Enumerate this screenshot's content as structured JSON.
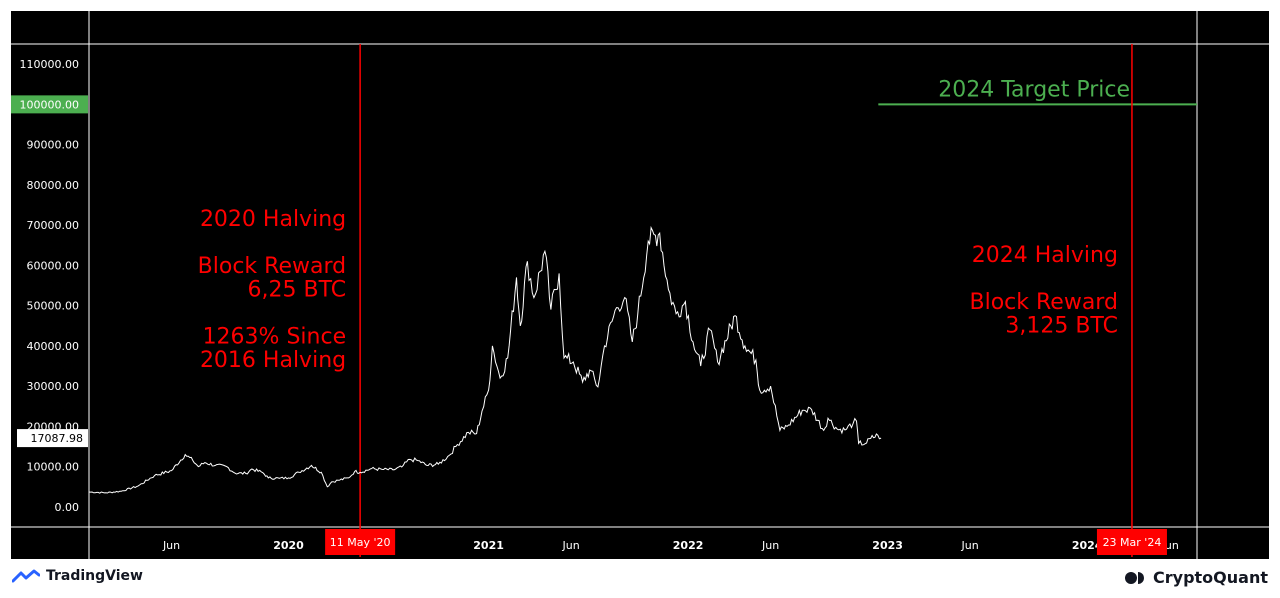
{
  "chart_data": {
    "type": "line",
    "series": [
      {
        "points": [
          [
            "2019-01-01",
            3700
          ],
          [
            "2019-02-01",
            3500
          ],
          [
            "2019-03-01",
            3900
          ],
          [
            "2019-04-01",
            5200
          ],
          [
            "2019-05-01",
            7800
          ],
          [
            "2019-06-01",
            9000
          ],
          [
            "2019-06-26",
            13000
          ],
          [
            "2019-07-10",
            11500
          ],
          [
            "2019-07-20",
            10000
          ],
          [
            "2019-08-01",
            11000
          ],
          [
            "2019-08-20",
            10300
          ],
          [
            "2019-09-10",
            10000
          ],
          [
            "2019-09-25",
            8400
          ],
          [
            "2019-10-15",
            8300
          ],
          [
            "2019-10-26",
            9400
          ],
          [
            "2019-11-15",
            8500
          ],
          [
            "2019-11-25",
            7200
          ],
          [
            "2019-12-15",
            7100
          ],
          [
            "2020-01-01",
            7200
          ],
          [
            "2020-01-20",
            8600
          ],
          [
            "2020-02-12",
            10300
          ],
          [
            "2020-03-01",
            8600
          ],
          [
            "2020-03-12",
            5000
          ],
          [
            "2020-03-20",
            6200
          ],
          [
            "2020-04-01",
            6600
          ],
          [
            "2020-04-20",
            7200
          ],
          [
            "2020-05-01",
            8800
          ],
          [
            "2020-05-11",
            8600
          ],
          [
            "2020-06-01",
            9500
          ],
          [
            "2020-06-20",
            9300
          ],
          [
            "2020-07-10",
            9200
          ],
          [
            "2020-07-26",
            9900
          ],
          [
            "2020-08-10",
            11800
          ],
          [
            "2020-08-25",
            11500
          ],
          [
            "2020-09-10",
            10300
          ],
          [
            "2020-10-01",
            10600
          ],
          [
            "2020-10-21",
            12800
          ],
          [
            "2020-11-05",
            15500
          ],
          [
            "2020-11-25",
            18500
          ],
          [
            "2020-12-10",
            18200
          ],
          [
            "2020-12-20",
            23800
          ],
          [
            "2021-01-01",
            29000
          ],
          [
            "2021-01-08",
            40000
          ],
          [
            "2021-01-22",
            32000
          ],
          [
            "2021-02-05",
            37000
          ],
          [
            "2021-02-21",
            57000
          ],
          [
            "2021-02-28",
            45000
          ],
          [
            "2021-03-13",
            61000
          ],
          [
            "2021-03-25",
            52000
          ],
          [
            "2021-04-14",
            63500
          ],
          [
            "2021-04-25",
            49000
          ],
          [
            "2021-05-10",
            58000
          ],
          [
            "2021-05-19",
            37000
          ],
          [
            "2021-06-05",
            36000
          ],
          [
            "2021-06-22",
            31000
          ],
          [
            "2021-07-05",
            34000
          ],
          [
            "2021-07-20",
            29800
          ],
          [
            "2021-08-01",
            40000
          ],
          [
            "2021-08-23",
            49500
          ],
          [
            "2021-09-07",
            52000
          ],
          [
            "2021-09-21",
            41000
          ],
          [
            "2021-10-01",
            48000
          ],
          [
            "2021-10-20",
            66000
          ],
          [
            "2021-11-10",
            68000
          ],
          [
            "2021-11-26",
            54000
          ],
          [
            "2021-12-10",
            48000
          ],
          [
            "2021-12-27",
            51000
          ],
          [
            "2022-01-10",
            41000
          ],
          [
            "2022-01-24",
            35000
          ],
          [
            "2022-02-10",
            44000
          ],
          [
            "2022-02-24",
            36000
          ],
          [
            "2022-03-28",
            47500
          ],
          [
            "2022-04-15",
            40000
          ],
          [
            "2022-05-05",
            36500
          ],
          [
            "2022-05-12",
            29000
          ],
          [
            "2022-06-01",
            30000
          ],
          [
            "2022-06-18",
            19000
          ],
          [
            "2022-07-01",
            20000
          ],
          [
            "2022-07-29",
            24000
          ],
          [
            "2022-08-15",
            24200
          ],
          [
            "2022-09-06",
            19000
          ],
          [
            "2022-09-14",
            22000
          ],
          [
            "2022-10-01",
            19300
          ],
          [
            "2022-10-15",
            19100
          ],
          [
            "2022-10-30",
            20800
          ],
          [
            "2022-11-05",
            21300
          ],
          [
            "2022-11-09",
            15800
          ],
          [
            "2022-11-21",
            15700
          ],
          [
            "2022-12-01",
            17000
          ],
          [
            "2022-12-14",
            17800
          ],
          [
            "2022-12-20",
            17087.98
          ]
        ]
      }
    ],
    "ylim": [
      -5000,
      115000
    ],
    "xlim": [
      "2019-01-01",
      "2024-07-20"
    ],
    "y_ticks": [
      0,
      10000,
      20000,
      30000,
      40000,
      50000,
      60000,
      70000,
      80000,
      90000,
      100000,
      110000
    ],
    "y_tick_labels": [
      "0.00",
      "10000.00",
      "20000.00",
      "30000.00",
      "40000.00",
      "50000.00",
      "60000.00",
      "70000.00",
      "80000.00",
      "90000.00",
      "100000.00",
      "110000.00"
    ],
    "x_ticks": [
      {
        "date": "2019-06-01",
        "label": "Jun"
      },
      {
        "date": "2020-01-01",
        "label": "2020"
      },
      {
        "date": "2020-06-01",
        "label": "Jun"
      },
      {
        "date": "2021-01-01",
        "label": "2021"
      },
      {
        "date": "2021-06-01",
        "label": "Jun"
      },
      {
        "date": "2022-01-01",
        "label": "2022"
      },
      {
        "date": "2022-06-01",
        "label": "Jun"
      },
      {
        "date": "2023-01-01",
        "label": "2023"
      },
      {
        "date": "2023-06-01",
        "label": "Jun"
      },
      {
        "date": "2024-01-01",
        "label": "2024"
      },
      {
        "date": "2024-06-01",
        "label": "Jun"
      }
    ],
    "last_price_label": "17087.98",
    "target_price": {
      "value": 100000,
      "label": "2024 Target Price",
      "axis_label": "100000.00",
      "start": "2022-12-15",
      "color": "#4caf50"
    },
    "halvings": [
      {
        "date": "2020-05-11",
        "axis_label": "11 May '20",
        "lines": [
          "2020 Halving",
          "",
          "Block Reward",
          "6,25 BTC",
          "",
          "1263% Since",
          "2016 Halving"
        ]
      },
      {
        "date": "2024-03-23",
        "axis_label": "23 Mar '24",
        "lines": [
          "2024 Halving",
          "",
          "Block Reward",
          "3,125 BTC"
        ]
      }
    ],
    "colors": {
      "price_line": "#ffffff",
      "halving": "#ff0000",
      "target": "#4caf50",
      "background": "#000000",
      "grid": "#ffffff"
    },
    "grid": false
  },
  "footer": {
    "left_brand": "TradingView",
    "right_brand": "CryptoQuant"
  }
}
